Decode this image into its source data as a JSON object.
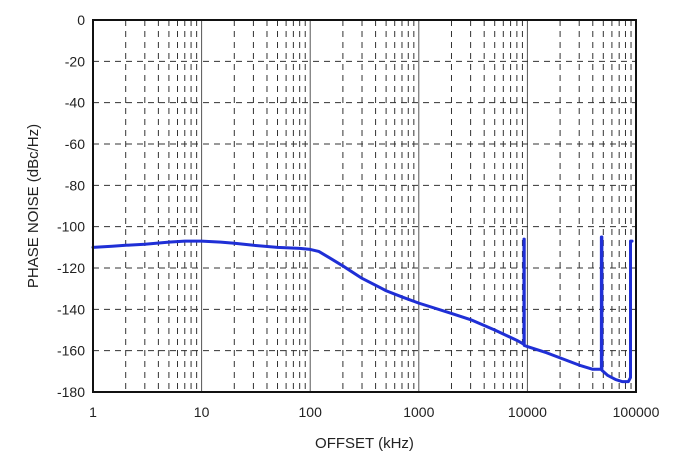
{
  "chart_data": {
    "type": "line",
    "title": "",
    "xlabel": "OFFSET (kHz)",
    "ylabel": "PHASE NOISE (dBc/Hz)",
    "x_scale": "log",
    "xlim": [
      1,
      100000
    ],
    "ylim": [
      -180,
      0
    ],
    "grid": "dashed, major and minor",
    "line_color": "#1f2fd6",
    "x_ticks": [
      1,
      10,
      100,
      1000,
      10000,
      100000
    ],
    "x_tick_labels": [
      "1",
      "10",
      "100",
      "1000",
      "10000",
      "100000"
    ],
    "y_ticks": [
      0,
      -20,
      -40,
      -60,
      -80,
      -100,
      -120,
      -140,
      -160,
      -180
    ],
    "y_tick_labels": [
      "0",
      "-20",
      "-40",
      "-60",
      "-80",
      "-100",
      "-120",
      "-140",
      "-160",
      "-180"
    ],
    "series": [
      {
        "points": [
          [
            1,
            -110
          ],
          [
            1.5,
            -109.5
          ],
          [
            2,
            -109
          ],
          [
            3,
            -108.5
          ],
          [
            5,
            -107.5
          ],
          [
            7,
            -107
          ],
          [
            10,
            -107
          ],
          [
            15,
            -107.5
          ],
          [
            20,
            -108
          ],
          [
            30,
            -109
          ],
          [
            50,
            -110
          ],
          [
            80,
            -110.5
          ],
          [
            100,
            -111
          ],
          [
            120,
            -112
          ],
          [
            150,
            -115
          ],
          [
            200,
            -119
          ],
          [
            300,
            -125
          ],
          [
            500,
            -131
          ],
          [
            700,
            -134
          ],
          [
            1000,
            -137
          ],
          [
            2000,
            -142
          ],
          [
            3000,
            -145
          ],
          [
            5000,
            -150
          ],
          [
            8000,
            -155
          ],
          [
            9000,
            -156.5
          ],
          [
            9300,
            -157
          ],
          [
            9300,
            -106
          ],
          [
            9350,
            -106
          ],
          [
            9350,
            -157.5
          ],
          [
            10000,
            -158
          ],
          [
            15000,
            -161
          ],
          [
            20000,
            -163.5
          ],
          [
            30000,
            -167
          ],
          [
            40000,
            -169
          ],
          [
            48000,
            -169
          ],
          [
            48000,
            -105
          ],
          [
            48500,
            -105
          ],
          [
            48500,
            -169.5
          ],
          [
            55000,
            -172
          ],
          [
            65000,
            -174
          ],
          [
            75000,
            -175
          ],
          [
            85000,
            -175
          ],
          [
            89000,
            -173
          ],
          [
            89000,
            -107
          ],
          [
            92000,
            -107
          ]
        ]
      }
    ]
  }
}
